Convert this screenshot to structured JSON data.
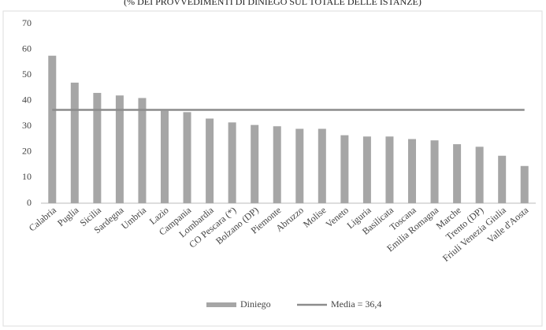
{
  "chart_data": {
    "type": "bar",
    "title": "(% DEI PROVVEDIMENTI DI DINIEGO SUL TOTALE DELLE ISTANZE)",
    "categories": [
      "Calabria",
      "Puglia",
      "Sicilia",
      "Sardegna",
      "Umbria",
      "Lazio",
      "Campania",
      "Lombardia",
      "CO Pescara (*)",
      "Bolzano (DP)",
      "Piemonte",
      "Abruzzo",
      "Molise",
      "Veneto",
      "Liguria",
      "Basilicata",
      "Toscana",
      "Emilia Romagna",
      "Marche",
      "Trento (DP)",
      "Friuli Venezia Giulia",
      "Valle d'Aosta"
    ],
    "series": [
      {
        "name": "Diniego",
        "type": "bar",
        "color": "#a6a6a6",
        "values": [
          57.5,
          47,
          43,
          42,
          41,
          36,
          35.5,
          33,
          31.5,
          30.5,
          30,
          29,
          29,
          26.5,
          26,
          26,
          25,
          24.5,
          23,
          22,
          18.5,
          14.5
        ]
      },
      {
        "name": "Media = 36,4",
        "type": "line",
        "color": "#8c8c8c",
        "values": [
          36.4,
          36.4,
          36.4,
          36.4,
          36.4,
          36.4,
          36.4,
          36.4,
          36.4,
          36.4,
          36.4,
          36.4,
          36.4,
          36.4,
          36.4,
          36.4,
          36.4,
          36.4,
          36.4,
          36.4,
          36.4,
          36.4
        ]
      }
    ],
    "ylim": [
      0,
      70
    ],
    "yticks": [
      0,
      10,
      20,
      30,
      40,
      50,
      60,
      70
    ],
    "grid": false,
    "legend": "bottom"
  }
}
